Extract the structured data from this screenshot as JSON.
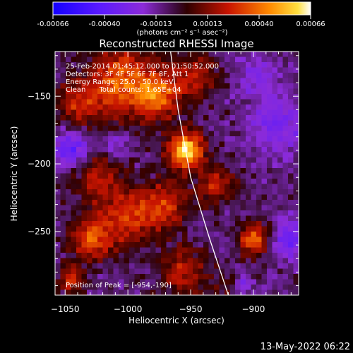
{
  "colorbar": {
    "ticks": [
      "-0.00066",
      "-0.00040",
      "-0.00013",
      "0.00013",
      "0.00040",
      "0.00066"
    ],
    "unit_label": "(photons cm⁻² s⁻¹ asec⁻²)",
    "range": [
      -0.00066,
      0.00066
    ]
  },
  "chart_data": {
    "type": "heatmap",
    "title": "Reconstructed RHESSI Image",
    "xlabel": "Heliocentric X (arcsec)",
    "ylabel": "Heliocentric Y (arcsec)",
    "xlim": [
      -1058,
      -864
    ],
    "ylim": [
      -297,
      -117
    ],
    "xticks": [
      -1050,
      -1000,
      -950,
      -900
    ],
    "yticks": [
      -150,
      -200,
      -250
    ],
    "annotations": [
      "25-Feb-2014 01:45:12.000 to 01:50:52.000",
      "Detectors: 3F 4F 5F 6F 7F 8F, Att 1",
      "Energy Range: 25.0 - 50.0 keV",
      "Clean      Total counts: 1.65E+04"
    ],
    "peak_label": "Position of Peak = [-954,-190]",
    "peak": [
      -954,
      -190
    ],
    "limb_curve": [
      [
        -966,
        -117
      ],
      [
        -960,
        -160
      ],
      [
        -950,
        -210
      ],
      [
        -935,
        -255
      ],
      [
        -920,
        -297
      ]
    ],
    "emission_blobs": [
      {
        "x": -954,
        "y": -190,
        "r": 14,
        "v": 0.00066
      },
      {
        "x": -1005,
        "y": -140,
        "r": 26,
        "v": 0.00045
      },
      {
        "x": -975,
        "y": -150,
        "r": 18,
        "v": 0.0004
      },
      {
        "x": -1040,
        "y": -155,
        "r": 16,
        "v": 0.0003
      },
      {
        "x": -1025,
        "y": -210,
        "r": 18,
        "v": 0.00028
      },
      {
        "x": -1000,
        "y": -240,
        "r": 22,
        "v": 0.00035
      },
      {
        "x": -1030,
        "y": -255,
        "r": 16,
        "v": 0.0004
      },
      {
        "x": -970,
        "y": -230,
        "r": 18,
        "v": 0.0003
      },
      {
        "x": -930,
        "y": -215,
        "r": 14,
        "v": 0.0003
      },
      {
        "x": -900,
        "y": -255,
        "r": 12,
        "v": 0.00042
      },
      {
        "x": -955,
        "y": -280,
        "r": 18,
        "v": 0.0003
      },
      {
        "x": -1045,
        "y": -285,
        "r": 10,
        "v": 0.00035
      },
      {
        "x": -945,
        "y": -135,
        "r": 18,
        "v": 0.00025
      },
      {
        "x": -920,
        "y": -290,
        "r": 10,
        "v": 0.00018
      }
    ],
    "negative_blobs": [
      {
        "x": -1045,
        "y": -190,
        "r": 14,
        "v": -0.0003
      },
      {
        "x": -870,
        "y": -255,
        "r": 14,
        "v": -0.0003
      },
      {
        "x": -1010,
        "y": -185,
        "r": 10,
        "v": -0.0002
      },
      {
        "x": -880,
        "y": -170,
        "r": 22,
        "v": -0.00022
      },
      {
        "x": -900,
        "y": -135,
        "r": 14,
        "v": -0.00018
      },
      {
        "x": -910,
        "y": -290,
        "r": 8,
        "v": -0.0002
      }
    ],
    "grid": false,
    "colorbar_position": "top"
  },
  "timestamp": "13-May-2022 06:22"
}
